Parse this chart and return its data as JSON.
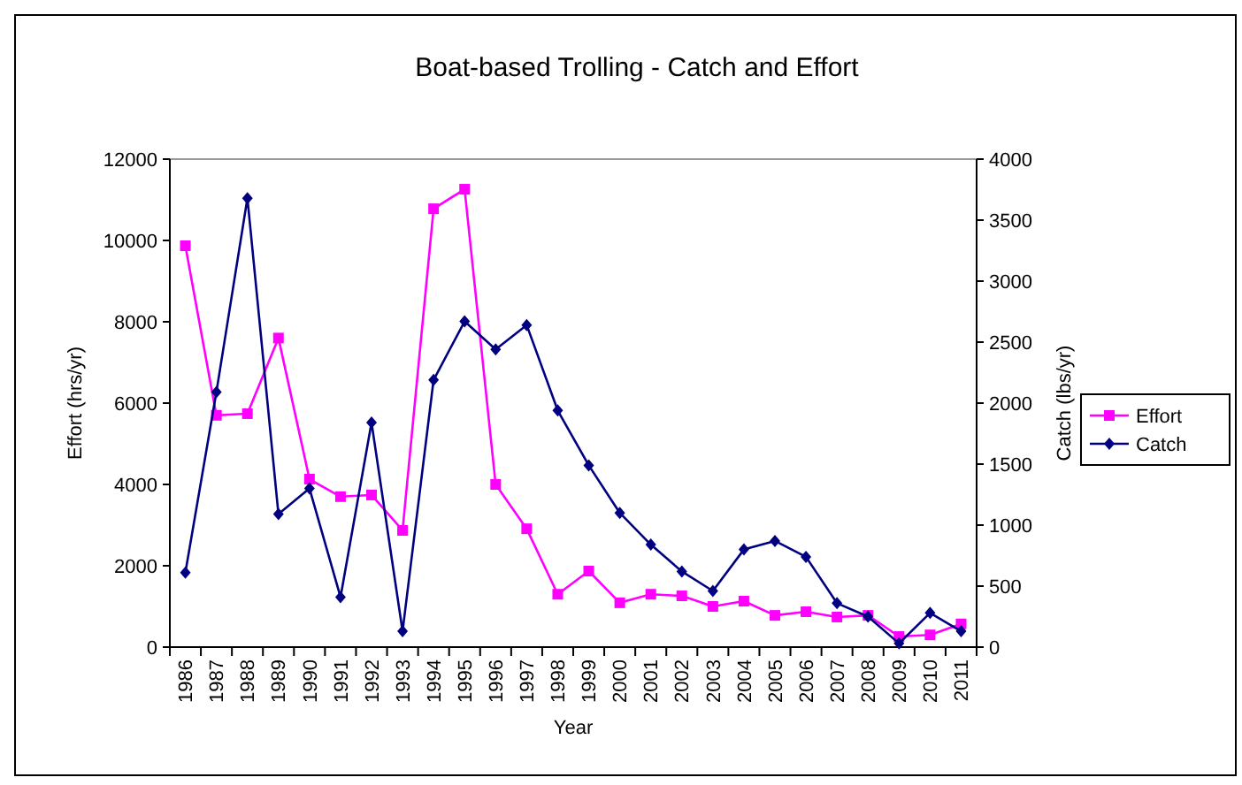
{
  "chart_data": {
    "type": "line",
    "title": "Boat-based Trolling - Catch and Effort",
    "xlabel": "Year",
    "ylabel": "Effort (hrs/yr)",
    "y2label": "Catch (lbs/yr)",
    "categories": [
      "1986",
      "1987",
      "1988",
      "1989",
      "1990",
      "1991",
      "1992",
      "1993",
      "1994",
      "1995",
      "1996",
      "1997",
      "1998",
      "1999",
      "2000",
      "2001",
      "2002",
      "2003",
      "2004",
      "2005",
      "2006",
      "2007",
      "2008",
      "2009",
      "2010",
      "2011"
    ],
    "series": [
      {
        "name": "Effort",
        "color": "#ff00ff",
        "marker": "square",
        "values": [
          9870,
          5700,
          5740,
          7600,
          4130,
          3700,
          3740,
          2870,
          10780,
          11260,
          4000,
          2910,
          1300,
          1870,
          1090,
          1300,
          1260,
          1000,
          1130,
          780,
          870,
          740,
          780,
          260,
          300,
          570
        ]
      },
      {
        "name": "Catch",
        "color": "#000080",
        "marker": "diamond",
        "axis": "y2",
        "values": [
          610,
          2090,
          3680,
          1090,
          1300,
          410,
          1840,
          130,
          2190,
          2670,
          2440,
          2640,
          1940,
          1490,
          1100,
          840,
          620,
          460,
          800,
          870,
          740,
          360,
          250,
          30,
          280,
          130
        ]
      }
    ],
    "ylim": [
      0,
      12000
    ],
    "yticks": [
      0,
      2000,
      4000,
      6000,
      8000,
      10000,
      12000
    ],
    "y2lim": [
      0,
      4000
    ],
    "y2ticks": [
      0,
      500,
      1000,
      1500,
      2000,
      2500,
      3000,
      3500,
      4000
    ],
    "legend": "right",
    "grid": false
  }
}
